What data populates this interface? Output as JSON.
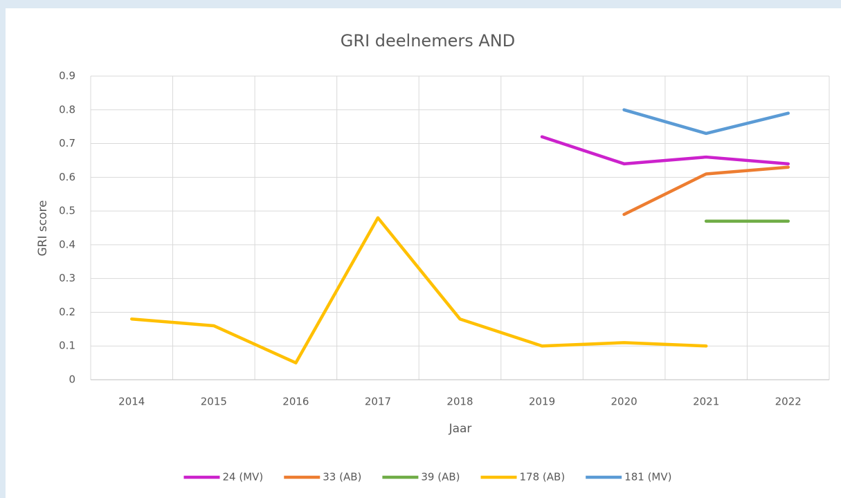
{
  "chart_data": {
    "type": "line",
    "title": "GRI deelnemers AND",
    "x_label": "Jaar",
    "y_label": "GRI score",
    "categories": [
      "2014",
      "2015",
      "2016",
      "2017",
      "2018",
      "2019",
      "2020",
      "2021",
      "2022"
    ],
    "series": [
      {
        "name": "24 (MV)",
        "color": "#cc22cc",
        "values": [
          null,
          null,
          null,
          null,
          null,
          0.72,
          0.64,
          0.66,
          0.64
        ]
      },
      {
        "name": "33 (AB)",
        "color": "#ed7d31",
        "values": [
          null,
          null,
          null,
          null,
          null,
          null,
          0.49,
          0.61,
          0.63
        ]
      },
      {
        "name": "39 (AB)",
        "color": "#70ad47",
        "values": [
          null,
          null,
          null,
          null,
          null,
          null,
          null,
          0.47,
          0.47
        ]
      },
      {
        "name": "178 (AB)",
        "color": "#ffc000",
        "values": [
          0.18,
          0.16,
          0.05,
          0.48,
          0.18,
          0.1,
          0.11,
          0.1,
          null
        ]
      },
      {
        "name": "181 (MV)",
        "color": "#5b9bd5",
        "values": [
          null,
          null,
          null,
          null,
          null,
          null,
          0.8,
          0.73,
          0.79
        ]
      }
    ],
    "ylim": [
      0,
      0.9
    ],
    "yticks": [
      0,
      0.1,
      0.2,
      0.3,
      0.4,
      0.5,
      0.6,
      0.7,
      0.8,
      0.9
    ],
    "grid": true,
    "legend": "bottom"
  }
}
